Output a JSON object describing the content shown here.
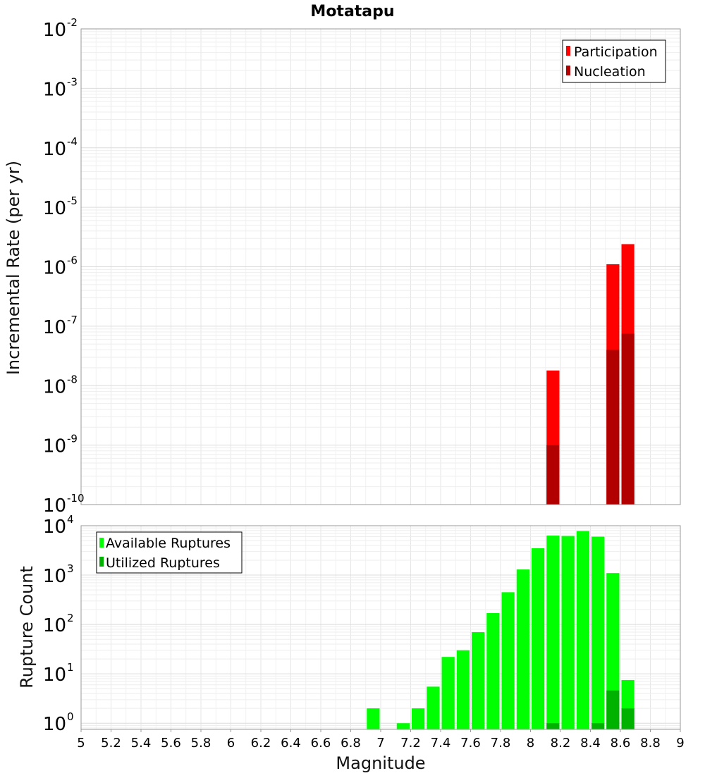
{
  "chart_data": [
    {
      "type": "bar",
      "title": "Motatapu",
      "xlabel": "",
      "ylabel": "Incremental Rate (per yr)",
      "y_scale": "log",
      "ylim": [
        1e-10,
        0.01
      ],
      "xlim": [
        5,
        9
      ],
      "grid": true,
      "legend_position": "top-right",
      "y_tick_labels": [
        {
          "base": "10",
          "exp": "-2"
        },
        {
          "base": "10",
          "exp": "-3"
        },
        {
          "base": "10",
          "exp": "-4"
        },
        {
          "base": "10",
          "exp": "-5"
        },
        {
          "base": "10",
          "exp": "-6"
        },
        {
          "base": "10",
          "exp": "-7"
        },
        {
          "base": "10",
          "exp": "-8"
        },
        {
          "base": "10",
          "exp": "-9"
        },
        {
          "base": "10",
          "exp": "-10"
        }
      ],
      "series": [
        {
          "name": "Participation",
          "color": "#ff0000",
          "points": [
            {
              "x": 8.15,
              "y": 1.8e-08
            },
            {
              "x": 8.55,
              "y": 1.1e-06
            },
            {
              "x": 8.65,
              "y": 2.4e-06
            }
          ]
        },
        {
          "name": "Nucleation",
          "color": "#b20000",
          "points": [
            {
              "x": 8.15,
              "y": 1e-09
            },
            {
              "x": 8.55,
              "y": 4e-08
            },
            {
              "x": 8.65,
              "y": 7.5e-08
            }
          ]
        }
      ]
    },
    {
      "type": "bar",
      "title": "",
      "xlabel": "Magnitude",
      "ylabel": "Rupture Count",
      "y_scale": "log",
      "ylim": [
        0.75,
        10000
      ],
      "xlim": [
        5,
        9
      ],
      "grid": true,
      "legend_position": "top-left",
      "x_ticks": [
        "5",
        "5.2",
        "5.4",
        "5.6",
        "5.8",
        "6",
        "6.2",
        "6.4",
        "6.6",
        "6.8",
        "7",
        "7.2",
        "7.4",
        "7.6",
        "7.8",
        "8",
        "8.2",
        "8.4",
        "8.6",
        "8.8",
        "9"
      ],
      "y_tick_labels": [
        {
          "base": "10",
          "exp": "4"
        },
        {
          "base": "10",
          "exp": "3"
        },
        {
          "base": "10",
          "exp": "2"
        },
        {
          "base": "10",
          "exp": "1"
        },
        {
          "base": "10",
          "exp": "0"
        }
      ],
      "series": [
        {
          "name": "Available Ruptures",
          "color": "#00ff00",
          "points": [
            {
              "x": 6.95,
              "y": 2
            },
            {
              "x": 7.15,
              "y": 1
            },
            {
              "x": 7.25,
              "y": 2
            },
            {
              "x": 7.35,
              "y": 5.5
            },
            {
              "x": 7.45,
              "y": 22
            },
            {
              "x": 7.55,
              "y": 30
            },
            {
              "x": 7.65,
              "y": 70
            },
            {
              "x": 7.75,
              "y": 170
            },
            {
              "x": 7.85,
              "y": 450
            },
            {
              "x": 7.95,
              "y": 1300
            },
            {
              "x": 8.05,
              "y": 3500
            },
            {
              "x": 8.15,
              "y": 6300
            },
            {
              "x": 8.25,
              "y": 6200
            },
            {
              "x": 8.35,
              "y": 7800
            },
            {
              "x": 8.45,
              "y": 6000
            },
            {
              "x": 8.55,
              "y": 1100
            },
            {
              "x": 8.65,
              "y": 7.5
            }
          ]
        },
        {
          "name": "Utilized Ruptures",
          "color": "#00b200",
          "points": [
            {
              "x": 8.15,
              "y": 1
            },
            {
              "x": 8.45,
              "y": 1
            },
            {
              "x": 8.55,
              "y": 4.6
            },
            {
              "x": 8.65,
              "y": 2
            }
          ]
        }
      ]
    }
  ]
}
